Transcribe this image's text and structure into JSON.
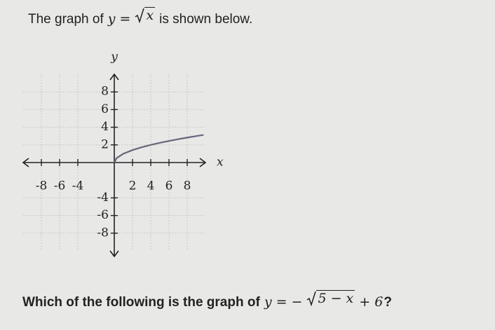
{
  "intro": {
    "before": "The graph of",
    "lhs": "y =",
    "radicand": "x",
    "after": "is shown below."
  },
  "chart_data": {
    "type": "line",
    "x_label": "x",
    "y_label": "y",
    "x": [
      0,
      0.25,
      1,
      2,
      3,
      4,
      5,
      6,
      7,
      8,
      9,
      9.8
    ],
    "values": [
      0,
      0.5,
      1,
      1.414,
      1.732,
      2,
      2.236,
      2.449,
      2.646,
      2.828,
      3,
      3.13
    ],
    "color": "#66677a",
    "xlim": [
      -10,
      10
    ],
    "ylim": [
      -10,
      10
    ],
    "xticks": [
      -8,
      -6,
      -4,
      2,
      4,
      6,
      8
    ],
    "yticks": [
      -8,
      -6,
      -4,
      2,
      4,
      6,
      8
    ],
    "grid": true
  },
  "question": {
    "before": "Which of the following is the graph of",
    "lhs": "y = −",
    "radicand": "5 − x",
    "rest": "+ 6",
    "after": "?"
  }
}
